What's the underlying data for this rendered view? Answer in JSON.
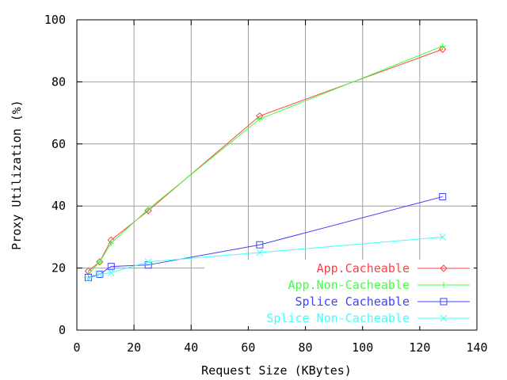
{
  "chart_data": {
    "type": "line",
    "title": "",
    "xlabel": "Request Size (KBytes)",
    "ylabel": "Proxy Utilization (%)",
    "xlim": [
      0,
      140
    ],
    "ylim": [
      0,
      100
    ],
    "xticks": [
      0,
      20,
      40,
      60,
      80,
      100,
      120,
      140
    ],
    "yticks": [
      0,
      20,
      40,
      60,
      80,
      100
    ],
    "grid": true,
    "legend_position": "bottom-right",
    "x": [
      4,
      8,
      12,
      25,
      64,
      128
    ],
    "series": [
      {
        "name": "App.Cacheable",
        "color": "#ff4040",
        "marker": "diamond",
        "values": [
          19,
          22,
          29,
          38.5,
          69,
          90.5
        ]
      },
      {
        "name": "App.Non-Cacheable",
        "color": "#40ff40",
        "marker": "plus",
        "values": [
          18,
          22,
          28,
          39,
          68,
          91.5
        ]
      },
      {
        "name": "Splice Cacheable",
        "color": "#4040ff",
        "marker": "square",
        "values": [
          17,
          18,
          20.5,
          21,
          27.5,
          43
        ]
      },
      {
        "name": "Splice Non-Cacheable",
        "color": "#40ffff",
        "marker": "x",
        "values": [
          16.5,
          18,
          18.5,
          22,
          25,
          30
        ]
      }
    ]
  }
}
